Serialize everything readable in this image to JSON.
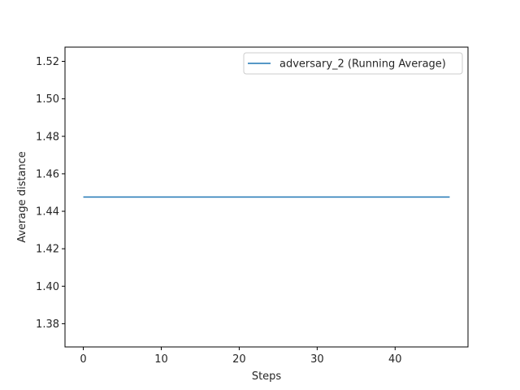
{
  "chart_data": {
    "type": "line",
    "title": "",
    "xlabel": "Steps",
    "ylabel": "Average distance",
    "xlim": [
      -2.35,
      49.35
    ],
    "ylim": [
      1.3676,
      1.5276
    ],
    "xticks": [
      0,
      10,
      20,
      30,
      40
    ],
    "yticks": [
      1.38,
      1.4,
      1.42,
      1.44,
      1.46,
      1.48,
      1.5,
      1.52
    ],
    "ytick_labels": [
      "1.38",
      "1.40",
      "1.42",
      "1.44",
      "1.46",
      "1.48",
      "1.50",
      "1.52"
    ],
    "grid": false,
    "legend_position": "top-right",
    "series": [
      {
        "name": "adversary_2 (Running Average)",
        "color": "#1f77b4",
        "x": [
          0,
          47
        ],
        "y": [
          1.4476,
          1.4476
        ]
      }
    ]
  }
}
